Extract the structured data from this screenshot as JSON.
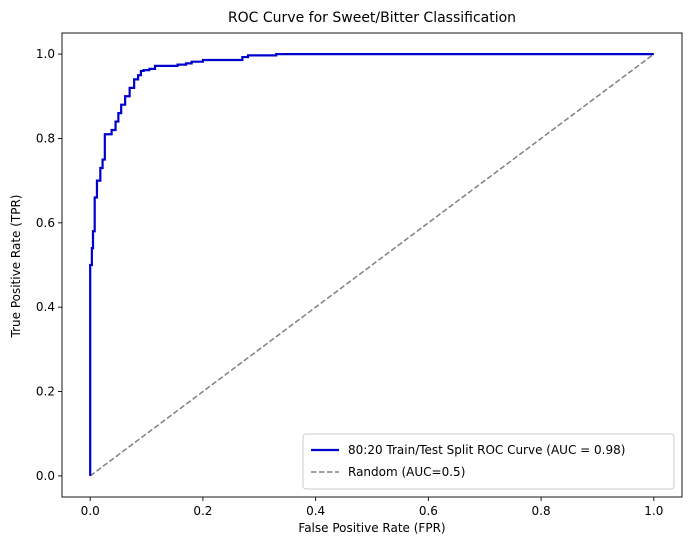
{
  "chart_data": {
    "type": "line",
    "title": "ROC Curve for Sweet/Bitter Classification",
    "xlabel": "False Positive Rate (FPR)",
    "ylabel": "True Positive Rate (TPR)",
    "xlim": [
      -0.05,
      1.05
    ],
    "ylim": [
      -0.05,
      1.05
    ],
    "xticks": [
      "0.0",
      "0.2",
      "0.4",
      "0.6",
      "0.8",
      "1.0"
    ],
    "yticks": [
      "0.0",
      "0.2",
      "0.4",
      "0.6",
      "0.8",
      "1.0"
    ],
    "grid": false,
    "legend_position": "lower-right",
    "series": [
      {
        "name": "80:20 Train/Test Split ROC Curve (AUC = 0.98)",
        "color": "#0000cc",
        "style": "solid",
        "x": [
          0,
          0,
          0.003,
          0.003,
          0.005,
          0.005,
          0.008,
          0.008,
          0.012,
          0.012,
          0.018,
          0.018,
          0.022,
          0.022,
          0.026,
          0.026,
          0.03,
          0.03,
          0.038,
          0.038,
          0.045,
          0.045,
          0.05,
          0.05,
          0.055,
          0.055,
          0.062,
          0.062,
          0.07,
          0.07,
          0.078,
          0.078,
          0.085,
          0.085,
          0.09,
          0.09,
          0.095,
          0.095,
          0.105,
          0.105,
          0.115,
          0.115,
          0.155,
          0.155,
          0.17,
          0.17,
          0.18,
          0.18,
          0.2,
          0.2,
          0.27,
          0.27,
          0.28,
          0.28,
          0.33,
          0.33,
          1.0
        ],
        "y": [
          0,
          0.5,
          0.5,
          0.54,
          0.54,
          0.58,
          0.58,
          0.66,
          0.66,
          0.7,
          0.7,
          0.73,
          0.73,
          0.75,
          0.75,
          0.81,
          0.81,
          0.81,
          0.81,
          0.82,
          0.82,
          0.84,
          0.84,
          0.86,
          0.86,
          0.88,
          0.88,
          0.9,
          0.9,
          0.92,
          0.92,
          0.94,
          0.94,
          0.95,
          0.95,
          0.96,
          0.96,
          0.962,
          0.962,
          0.965,
          0.965,
          0.972,
          0.972,
          0.975,
          0.975,
          0.978,
          0.978,
          0.982,
          0.982,
          0.986,
          0.986,
          0.993,
          0.993,
          0.997,
          0.997,
          1.0,
          1.0
        ]
      },
      {
        "name": "Random (AUC=0.5)",
        "color": "#808080",
        "style": "dashed",
        "x": [
          0,
          1
        ],
        "y": [
          0,
          1
        ]
      }
    ]
  }
}
